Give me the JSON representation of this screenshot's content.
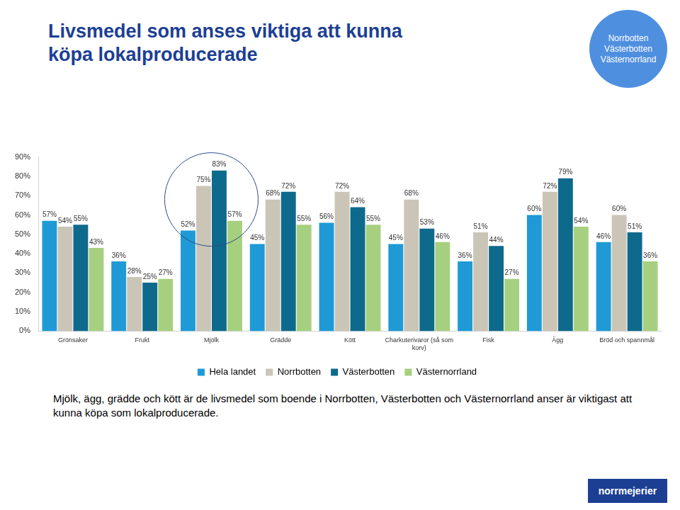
{
  "chart_data": {
    "type": "bar",
    "title": [
      "Livsmedel som anses viktiga att kunna",
      "köpa lokalproducerade"
    ],
    "annotations": {
      "badge": [
        "Norrbotten",
        "Västerbotten",
        "Västernorrland"
      ],
      "caption": "Mjölk, ägg, grädde och kött är de livsmedel som boende i Norrbotten, Västerbotten och Västernorrland anser är viktigast att kunna köpa som lokalproducerade.",
      "logo": "norrmejerier"
    },
    "categories": [
      "Grönsaker",
      "Frukt",
      "Mjölk",
      "Grädde",
      "Kött",
      "Charkuterivaror (så som korv)",
      "Fisk",
      "Ägg",
      "Bröd och spannmål"
    ],
    "series": [
      {
        "name": "Hela landet",
        "color": "#1f9ad6",
        "values": [
          57,
          36,
          52,
          45,
          56,
          45,
          36,
          60,
          46
        ],
        "value_labels": [
          "57%",
          "36%",
          "52%",
          "45%",
          "56%",
          "45%",
          "36%",
          "60%",
          "46%"
        ]
      },
      {
        "name": "Norrbotten",
        "color": "#cbc5b7",
        "values": [
          54,
          28,
          75,
          68,
          72,
          68,
          51,
          72,
          60
        ],
        "value_labels": [
          "54%",
          "28%",
          "75%",
          "68%",
          "72%",
          "68%",
          "51%",
          "72%",
          "60%"
        ]
      },
      {
        "name": "Västerbotten",
        "color": "#0e6a8c",
        "values": [
          55,
          25,
          83,
          72,
          64,
          53,
          44,
          79,
          51
        ],
        "value_labels": [
          "55%",
          "25%",
          "83%",
          "72%",
          "64%",
          "53%",
          "44%",
          "79%",
          "51%"
        ]
      },
      {
        "name": "Västernorrland",
        "color": "#a6d07f",
        "values": [
          43,
          27,
          57,
          55,
          55,
          46,
          27,
          54,
          36
        ],
        "value_labels": [
          "43%",
          "27%",
          "57%",
          "55%",
          "55%",
          "46%",
          "27%",
          "54%",
          "36%"
        ]
      }
    ],
    "ylim": [
      0,
      90
    ],
    "yticks": [
      {
        "value": 0,
        "label": "0%"
      },
      {
        "value": 10,
        "label": "10%"
      },
      {
        "value": 20,
        "label": "20%"
      },
      {
        "value": 30,
        "label": "30%"
      },
      {
        "value": 40,
        "label": "40%"
      },
      {
        "value": 50,
        "label": "50%"
      },
      {
        "value": 60,
        "label": "60%"
      },
      {
        "value": 70,
        "label": "70%"
      },
      {
        "value": 80,
        "label": "80%"
      },
      {
        "value": 90,
        "label": "90%"
      }
    ],
    "grid": false,
    "legend": "bottom",
    "data_labels": true
  }
}
